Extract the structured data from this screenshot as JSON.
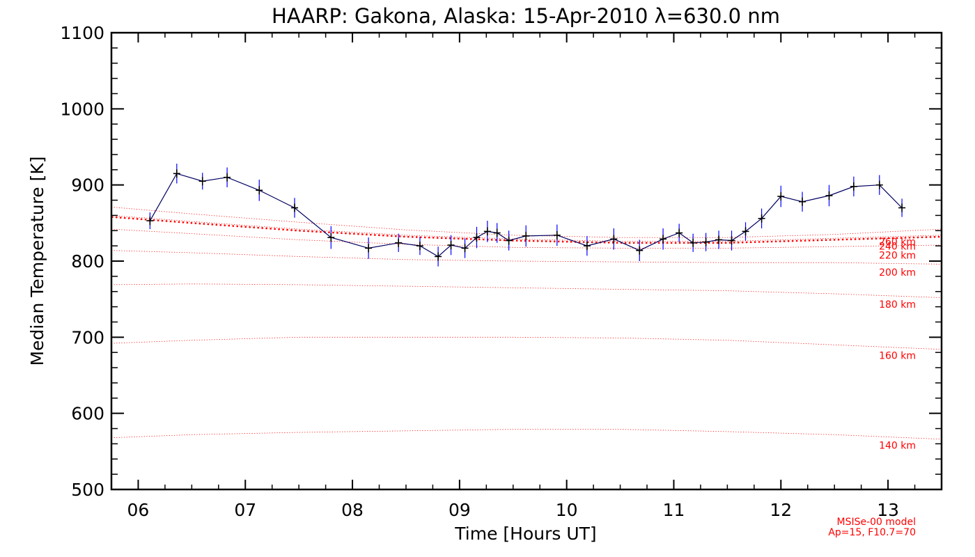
{
  "chart_data": {
    "type": "line",
    "title": "HAARP: Gakona,  Alaska: 15-Apr-2010 λ=630.0 nm",
    "xlabel": "Time [Hours UT]",
    "ylabel": "Median Temperature [K]",
    "xlim": [
      5.75,
      13.5
    ],
    "ylim": [
      500,
      1100
    ],
    "xticks": [
      6,
      7,
      8,
      9,
      10,
      11,
      12,
      13
    ],
    "xtick_labels": [
      "06",
      "07",
      "08",
      "09",
      "10",
      "11",
      "12",
      "13"
    ],
    "yticks": [
      500,
      600,
      700,
      800,
      900,
      1000,
      1100
    ],
    "ytick_labels": [
      "500",
      "600",
      "700",
      "800",
      "900",
      "1000",
      "1100"
    ],
    "grid": false,
    "colors": {
      "data": "#000060",
      "errorbar": "#0000ff",
      "model": "#ff0000"
    },
    "series": [
      {
        "x": [
          6.11,
          6.36,
          6.6,
          6.83,
          7.13,
          7.46,
          7.8,
          8.15,
          8.43,
          8.63,
          8.8,
          8.92,
          9.05,
          9.16,
          9.26,
          9.35,
          9.46,
          9.62,
          9.91,
          10.19,
          10.44,
          10.68,
          10.9,
          11.05,
          11.18,
          11.3,
          11.42,
          11.54,
          11.67,
          11.82,
          12.0,
          12.2,
          12.45,
          12.68,
          12.92,
          13.13
        ],
        "y": [
          853,
          915,
          905,
          910,
          893,
          870,
          831,
          817,
          824,
          820,
          806,
          821,
          817,
          831,
          839,
          837,
          827,
          833,
          834,
          820,
          829,
          814,
          829,
          837,
          824,
          825,
          828,
          827,
          839,
          856,
          885,
          878,
          886,
          898,
          900,
          870
        ],
        "yerr": [
          11,
          13,
          11,
          13,
          14,
          13,
          15,
          14,
          12,
          12,
          13,
          13,
          13,
          14,
          14,
          13,
          13,
          14,
          14,
          13,
          14,
          14,
          14,
          12,
          12,
          12,
          12,
          13,
          12,
          13,
          14,
          13,
          14,
          13,
          13,
          12
        ]
      }
    ],
    "model_curves": [
      {
        "label": "140 km",
        "x": [
          5.75,
          6.5,
          7.5,
          8.5,
          9.5,
          10.5,
          11.5,
          12.5,
          13.5
        ],
        "y": [
          568,
          572,
          575,
          577,
          579,
          579,
          576,
          572,
          566
        ]
      },
      {
        "label": "160 km",
        "x": [
          5.75,
          6.5,
          7.5,
          8.5,
          9.5,
          10.5,
          11.5,
          12.5,
          13.5
        ],
        "y": [
          692,
          696,
          700,
          700,
          700,
          699,
          696,
          690,
          684
        ]
      },
      {
        "label": "180 km",
        "x": [
          5.75,
          6.5,
          7.5,
          8.5,
          9.5,
          10.5,
          11.5,
          12.5,
          13.5
        ],
        "y": [
          769,
          770,
          769,
          767,
          765,
          763,
          761,
          757,
          752
        ]
      },
      {
        "label": "200 km",
        "x": [
          5.75,
          6.5,
          7.5,
          8.5,
          9.5,
          10.5,
          11.5,
          12.5,
          13.5
        ],
        "y": [
          814,
          811,
          806,
          802,
          800,
          799,
          798,
          798,
          796
        ]
      },
      {
        "label": "220 km",
        "x": [
          5.75,
          6.5,
          7.5,
          8.5,
          9.5,
          10.5,
          11.5,
          12.5,
          13.5
        ],
        "y": [
          842,
          836,
          828,
          822,
          818,
          817,
          817,
          819,
          821
        ]
      },
      {
        "label": "240 km",
        "x": [
          5.75,
          6.5,
          7.5,
          8.5,
          9.5,
          10.5,
          11.5,
          12.5,
          13.5
        ],
        "y": [
          860,
          852,
          842,
          834,
          829,
          826,
          826,
          830,
          834
        ]
      },
      {
        "label": "260 km",
        "x": [
          5.75,
          6.5,
          7.5,
          8.5,
          9.5,
          10.5,
          11.5,
          12.5,
          13.5
        ],
        "y": [
          871,
          862,
          851,
          841,
          834,
          831,
          831,
          835,
          842
        ]
      }
    ],
    "model_note": [
      "MSISe-00 model",
      "Ap=15, F10.7=70"
    ]
  }
}
